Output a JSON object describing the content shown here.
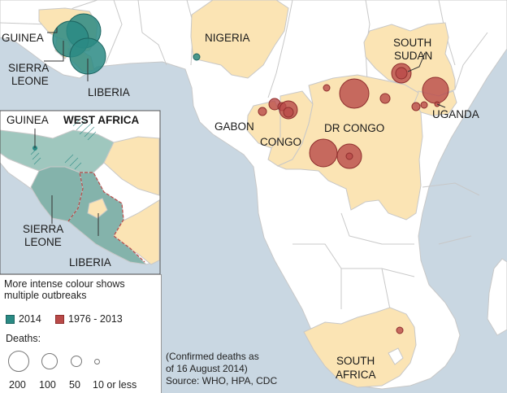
{
  "labels": {
    "guinea": "GUINEA",
    "sierra_leone": [
      "SIERRA",
      "LEONE"
    ],
    "liberia": "LIBERIA",
    "nigeria": "NIGERIA",
    "south_sudan": [
      "SOUTH",
      "SUDAN"
    ],
    "uganda": "UGANDA",
    "gabon": "GABON",
    "congo": "CONGO",
    "dr_congo": "DR CONGO",
    "south_africa": [
      "SOUTH",
      "AFRICA"
    ]
  },
  "inset": {
    "title": "WEST AFRICA",
    "guinea": "GUINEA",
    "sierra_leone": [
      "SIERRA",
      "LEONE"
    ],
    "liberia": "LIBERIA"
  },
  "legend": {
    "title": "More intense colour shows multiple outbreaks",
    "series": [
      {
        "label": "2014",
        "color": "#2a8a84"
      },
      {
        "label": "1976 - 2013",
        "color": "#b94a48"
      }
    ],
    "deaths_label": "Deaths:",
    "sizes": [
      {
        "label": "200",
        "deaths": 200
      },
      {
        "label": "100",
        "deaths": 100
      },
      {
        "label": "50",
        "deaths": 50
      },
      {
        "label": "10 or less",
        "deaths": 10
      }
    ]
  },
  "note": {
    "line1": "(Confirmed deaths as",
    "line2": "of 16 August 2014)",
    "source": "Source: WHO, HPA, CDC"
  },
  "colors": {
    "sea": "#c9d7e2",
    "land": "#ffffff",
    "highlight": "#fbe4b4",
    "teal": "#2a8a84",
    "red": "#b94a48"
  }
}
